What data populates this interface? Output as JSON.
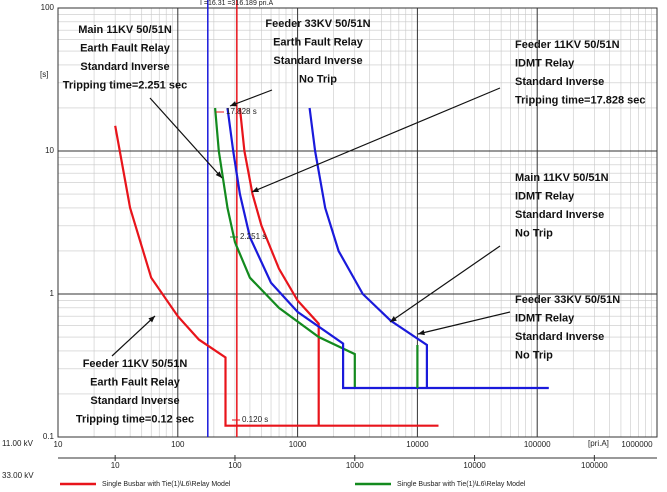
{
  "chart_data": {
    "type": "line",
    "log_x": true,
    "log_y": true,
    "grid": true,
    "ylabel": "[s]",
    "xlabel": "[pri.A]",
    "x_axis_name": "11.00 kV",
    "x2_axis_name": "33.00 kV",
    "xlim": [
      10,
      1000000
    ],
    "xticks": [
      10,
      100,
      1000,
      10000,
      100000,
      1000000
    ],
    "x2lim": [
      3.333,
      333333
    ],
    "x2ticks": [
      10,
      100,
      1000,
      10000,
      100000
    ],
    "ylim": [
      0.1,
      100
    ],
    "yticks": [
      0.1,
      1,
      10,
      100
    ],
    "series": [
      {
        "name": "Single Busbar with Tie(1)\\L6\\Relay Model",
        "color": "#e8141b",
        "x": [
          30,
          40,
          60,
          100,
          150,
          250,
          250,
          15000
        ],
        "values": [
          15,
          4,
          1.3,
          0.7,
          0.48,
          0.36,
          0.12,
          0.12
        ]
      },
      {
        "color": "#e8141b",
        "x": [
          330,
          360,
          420,
          500,
          700,
          1000,
          1500,
          1500
        ],
        "values": [
          20,
          10,
          5,
          3,
          1.5,
          0.9,
          0.62,
          0.12
        ]
      },
      {
        "name": "Single Busbar with Tie(1)\\L6\\Relay Model",
        "color": "#138a1e",
        "x": [
          205,
          220,
          260,
          300,
          400,
          700,
          1500,
          3000,
          3000
        ],
        "values": [
          20,
          10,
          4,
          2.3,
          1.3,
          0.8,
          0.5,
          0.38,
          0.22
        ]
      },
      {
        "color": "#1a1adb",
        "x": [
          260,
          290,
          330,
          400,
          600,
          1000,
          2400,
          2400,
          125000
        ],
        "values": [
          20,
          10,
          5,
          2.5,
          1.2,
          0.75,
          0.45,
          0.22,
          0.22
        ]
      },
      {
        "color": "#1a1adb",
        "x": [
          1260,
          1400,
          1700,
          2200,
          3500,
          6000,
          12000,
          12000
        ],
        "values": [
          20,
          10,
          4,
          2,
          1,
          0.65,
          0.44,
          0.22
        ]
      },
      {
        "color": "#138a1e",
        "x": [
          10000,
          10000
        ],
        "values": [
          0.44,
          0.22
        ]
      }
    ],
    "vlines": [
      {
        "x": 178,
        "color": "#1a1adb"
      },
      {
        "x": 311,
        "color": "#e8141b"
      }
    ],
    "top_label": "I =16.31 =316.189 pri.A",
    "markers": [
      {
        "text": "17.828 s",
        "color": "#e8141b"
      },
      {
        "text": "2.251 s",
        "color": "#138a1e"
      },
      {
        "text": "0.120 s",
        "color": "#e8141b"
      }
    ],
    "annotations": [
      {
        "lines": [
          "Main 11KV 50/51N",
          "Earth Fault Relay",
          "Standard Inverse",
          "Tripping time=2.251 sec"
        ]
      },
      {
        "lines": [
          "Feeder 33KV 50/51N",
          "Earth Fault Relay",
          "Standard Inverse",
          "No Trip"
        ]
      },
      {
        "lines": [
          "Feeder 11KV 50/51N",
          "IDMT Relay",
          "Standard Inverse",
          "Tripping time=17.828 sec"
        ]
      },
      {
        "lines": [
          "Main 11KV 50/51N",
          "IDMT Relay",
          "Standard Inverse",
          "No Trip"
        ]
      },
      {
        "lines": [
          "Feeder 33KV 50/51N",
          "IDMT Relay",
          "Standard Inverse",
          "No Trip"
        ]
      },
      {
        "lines": [
          "Feeder 11KV 50/51N",
          "Earth Fault Relay",
          "Standard Inverse",
          "Tripping time=0.12 sec"
        ]
      }
    ]
  }
}
